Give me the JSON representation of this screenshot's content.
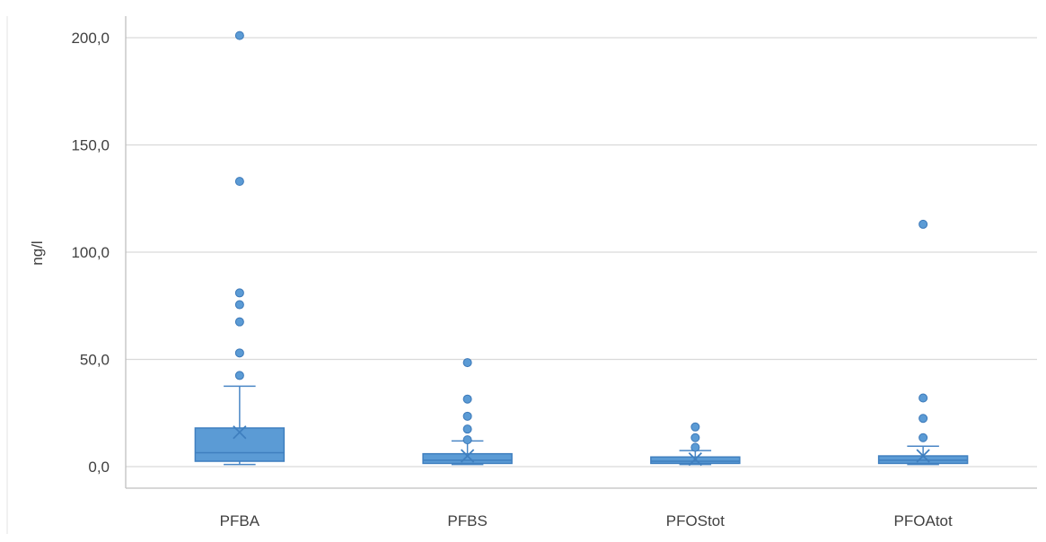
{
  "colors": {
    "box_fill": "#5b9bd5",
    "box_stroke": "#3f7fbf",
    "whisker": "#4a86c5",
    "outlier": "#5b9bd5",
    "outlier_stroke": "#3b78b8",
    "mean_marker": "#3f7fbf",
    "grid": "#d9d9d9",
    "axis": "#bfbfbf",
    "text": "#404040"
  },
  "chart_data": {
    "type": "box",
    "ylabel": "ng/l",
    "xlabel": "",
    "ylim": [
      0,
      200
    ],
    "yticks": [
      0,
      50,
      100,
      150,
      200
    ],
    "ytick_labels": [
      "0,0",
      "50,0",
      "100,0",
      "150,0",
      "200,0"
    ],
    "grid": true,
    "categories": [
      "PFBA",
      "PFBS",
      "PFOStot",
      "PFOAtot"
    ],
    "boxes": [
      {
        "category": "PFBA",
        "whisker_low": 1,
        "q1": 2.5,
        "median": 6.5,
        "q3": 18,
        "whisker_high": 37.5,
        "mean": 16,
        "outliers": [
          42.5,
          53,
          67.5,
          75.5,
          81,
          133,
          201
        ]
      },
      {
        "category": "PFBS",
        "whisker_low": 1,
        "q1": 1.5,
        "median": 3,
        "q3": 6,
        "whisker_high": 12,
        "mean": 5,
        "outliers": [
          12.5,
          17.5,
          23.5,
          31.5,
          48.5
        ]
      },
      {
        "category": "PFOStot",
        "whisker_low": 1,
        "q1": 1.5,
        "median": 2.5,
        "q3": 4.5,
        "whisker_high": 7.5,
        "mean": 3.5,
        "outliers": [
          9,
          13.5,
          18.5
        ]
      },
      {
        "category": "PFOAtot",
        "whisker_low": 1,
        "q1": 1.5,
        "median": 3,
        "q3": 5,
        "whisker_high": 9.5,
        "mean": 5,
        "outliers": [
          13.5,
          22.5,
          32,
          113
        ]
      }
    ]
  }
}
